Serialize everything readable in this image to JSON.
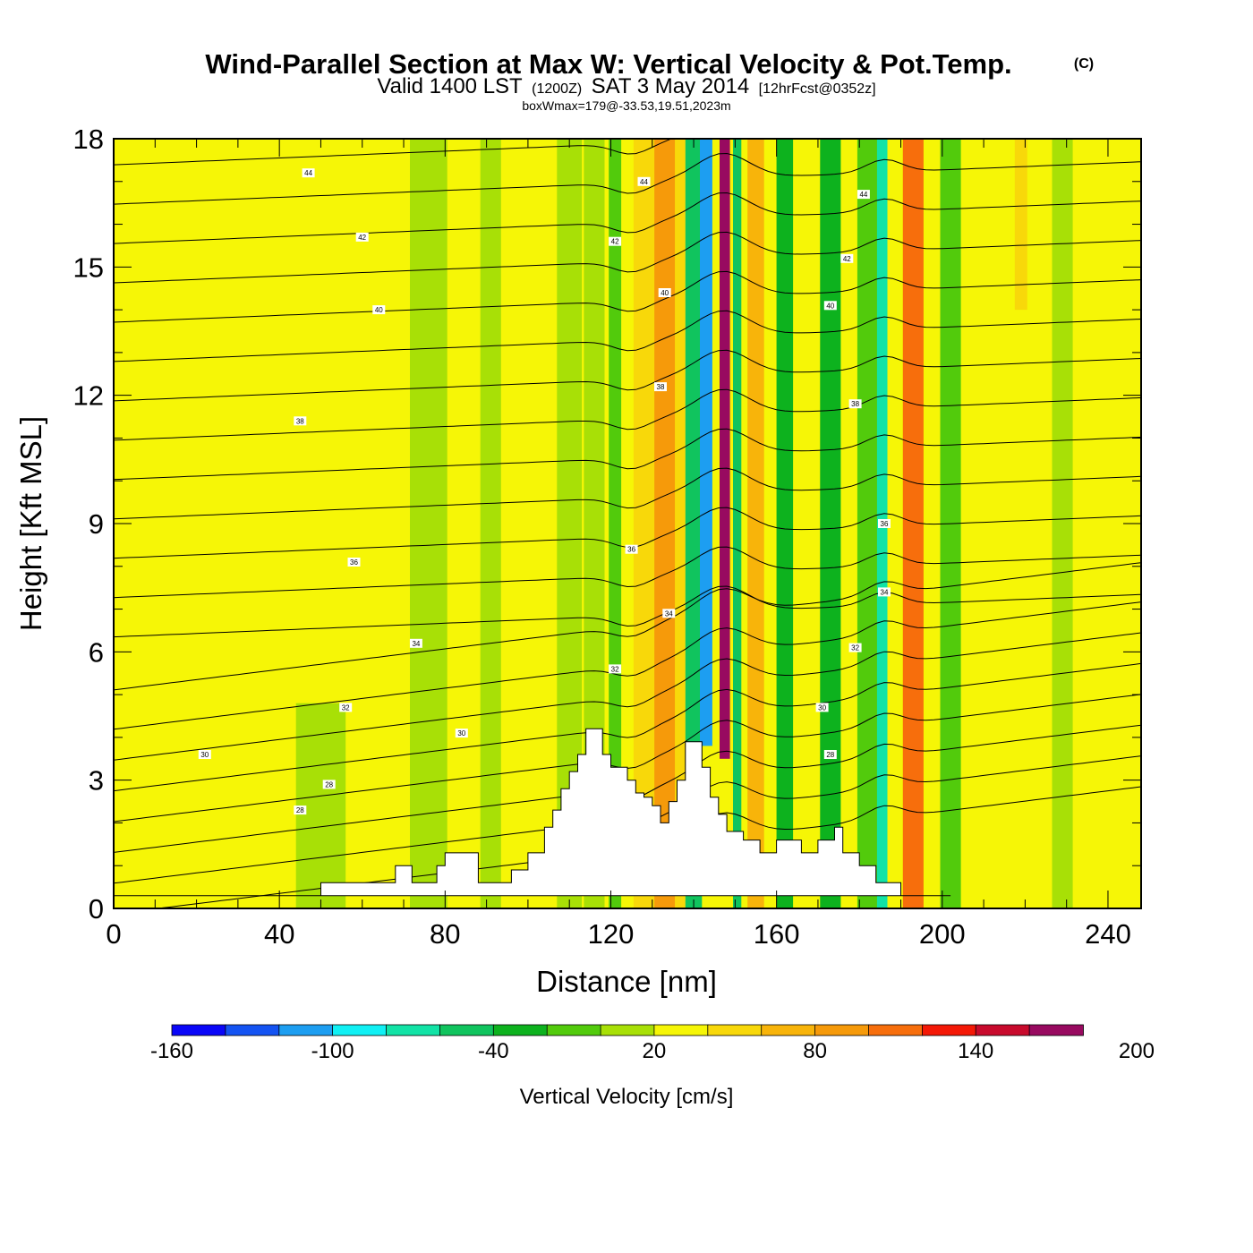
{
  "title": {
    "main": "Wind-Parallel Section at Max W: Vertical Velocity & Pot.Temp.",
    "copyright": "(C)",
    "valid_prefix": "Valid 1400 LST",
    "valid_utc": "(1200Z)",
    "valid_date": "SAT 3 May 2014",
    "forecast": "[12hrFcst@0352z]",
    "box_info": "boxWmax=179@-33.53,19.51,2023m"
  },
  "chart_data": {
    "type": "heatmap",
    "xlabel": "Distance [nm]",
    "ylabel": "Height [Kft MSL]",
    "xlim": [
      0,
      248
    ],
    "ylim": [
      0,
      18
    ],
    "x_ticks": [
      "0",
      "40",
      "80",
      "120",
      "160",
      "200",
      "240"
    ],
    "y_ticks": [
      "0",
      "3",
      "6",
      "9",
      "12",
      "15",
      "18"
    ],
    "colorbar": {
      "title": "Vertical Velocity [cm/s]",
      "labels": [
        "-160",
        "-100",
        "-40",
        "20",
        "80",
        "140",
        "200"
      ],
      "colors": [
        "#0a06f8",
        "#1453f2",
        "#1d9ef1",
        "#10f0f4",
        "#12e3a6",
        "#10c45e",
        "#0db21e",
        "#52cb0c",
        "#a8e006",
        "#f6f606",
        "#f8d80a",
        "#f8b40a",
        "#f69a0a",
        "#f76e0c",
        "#f41806",
        "#c80a2c",
        "#980a60"
      ]
    },
    "background_w": 10,
    "wind_bands": [
      {
        "x_center": 50,
        "width": 12,
        "w": -10,
        "y_top": 4.8
      },
      {
        "x_center": 76,
        "width": 9,
        "w": -8
      },
      {
        "x_center": 91,
        "width": 5,
        "w": -10
      },
      {
        "x_center": 110,
        "width": 6,
        "w": -10
      },
      {
        "x_center": 116,
        "width": 5,
        "w": -10
      },
      {
        "x_center": 121,
        "width": 3,
        "w": -30
      },
      {
        "x_center": 128,
        "width": 5,
        "w": 40
      },
      {
        "x_center": 133,
        "width": 5,
        "w": 70
      },
      {
        "x_center": 137,
        "width": 3,
        "w": 45
      },
      {
        "x_center": 140,
        "width": 4,
        "w": -60
      },
      {
        "x_center": 143,
        "width": 3,
        "w": -130,
        "y_bottom": 3.8
      },
      {
        "x_center": 147.5,
        "width": 2.5,
        "w": 178,
        "y_bottom": 3.5
      },
      {
        "x_center": 150.5,
        "width": 2,
        "w": -70
      },
      {
        "x_center": 155,
        "width": 4,
        "w": 65
      },
      {
        "x_center": 162,
        "width": 4,
        "w": -35
      },
      {
        "x_center": 173,
        "width": 5,
        "w": -40
      },
      {
        "x_center": 182,
        "width": 5,
        "w": -30
      },
      {
        "x_center": 185.5,
        "width": 2.5,
        "w": -90
      },
      {
        "x_center": 193,
        "width": 5,
        "w": 90
      },
      {
        "x_center": 202,
        "width": 5,
        "w": -15
      },
      {
        "x_center": 219,
        "width": 3,
        "w": 35,
        "y_bottom": 14
      },
      {
        "x_center": 229,
        "width": 5,
        "w": -10
      }
    ],
    "terrain": {
      "x": [
        0,
        50,
        50,
        68,
        68,
        72,
        72,
        78,
        78,
        80,
        80,
        88,
        88,
        96,
        96,
        100,
        100,
        104,
        104,
        106,
        106,
        108,
        108,
        110,
        110,
        112,
        112,
        114,
        114,
        118,
        118,
        120,
        120,
        124,
        124,
        126,
        126,
        128,
        128,
        130,
        130,
        132,
        132,
        134,
        134,
        136,
        136,
        138,
        138,
        142,
        142,
        144,
        144,
        146,
        146,
        148,
        148,
        152,
        152,
        156,
        156,
        160,
        160,
        166,
        166,
        170,
        170,
        174,
        174,
        176,
        176,
        180,
        180,
        184,
        184,
        190,
        190,
        202,
        202,
        210,
        210,
        248
      ],
      "y": [
        0.3,
        0.3,
        0.6,
        0.6,
        1.0,
        1.0,
        0.6,
        0.6,
        1.0,
        1.0,
        1.3,
        1.3,
        0.6,
        0.6,
        0.9,
        0.9,
        1.3,
        1.3,
        1.9,
        1.9,
        2.3,
        2.3,
        2.8,
        2.8,
        3.2,
        3.2,
        3.6,
        3.6,
        4.2,
        4.2,
        3.6,
        3.6,
        3.3,
        3.3,
        3.0,
        3.0,
        2.7,
        2.7,
        2.6,
        2.6,
        2.4,
        2.4,
        2.0,
        2.0,
        2.5,
        2.5,
        3.0,
        3.0,
        3.9,
        3.9,
        3.3,
        3.3,
        2.6,
        2.6,
        2.2,
        2.2,
        1.8,
        1.8,
        1.6,
        1.6,
        1.3,
        1.3,
        1.6,
        1.6,
        1.3,
        1.3,
        1.6,
        1.6,
        1.9,
        1.9,
        1.3,
        1.3,
        1.0,
        1.0,
        0.6,
        0.6,
        0.3,
        0.3
      ]
    },
    "theta_contours": {
      "levels_min": 26,
      "levels_max": 48,
      "labels": [
        {
          "text": "44",
          "x": 47,
          "y": 17.2
        },
        {
          "text": "42",
          "x": 60,
          "y": 15.7
        },
        {
          "text": "40",
          "x": 64,
          "y": 14.0
        },
        {
          "text": "38",
          "x": 45,
          "y": 11.4
        },
        {
          "text": "36",
          "x": 58,
          "y": 8.1
        },
        {
          "text": "34",
          "x": 73,
          "y": 6.2
        },
        {
          "text": "32",
          "x": 56,
          "y": 4.7
        },
        {
          "text": "30",
          "x": 22,
          "y": 3.6
        },
        {
          "text": "30",
          "x": 84,
          "y": 4.1
        },
        {
          "text": "28",
          "x": 52,
          "y": 2.9
        },
        {
          "text": "28",
          "x": 45,
          "y": 2.3
        },
        {
          "text": "44",
          "x": 128,
          "y": 17.0
        },
        {
          "text": "42",
          "x": 121,
          "y": 15.6
        },
        {
          "text": "40",
          "x": 133,
          "y": 14.4
        },
        {
          "text": "38",
          "x": 132,
          "y": 12.2
        },
        {
          "text": "36",
          "x": 125,
          "y": 8.4
        },
        {
          "text": "34",
          "x": 134,
          "y": 6.9
        },
        {
          "text": "32",
          "x": 121,
          "y": 5.6
        },
        {
          "text": "44",
          "x": 181,
          "y": 16.7
        },
        {
          "text": "42",
          "x": 177,
          "y": 15.2
        },
        {
          "text": "40",
          "x": 173,
          "y": 14.1
        },
        {
          "text": "38",
          "x": 179,
          "y": 11.8
        },
        {
          "text": "36",
          "x": 186,
          "y": 9.0
        },
        {
          "text": "34",
          "x": 186,
          "y": 7.4
        },
        {
          "text": "32",
          "x": 179,
          "y": 6.1
        },
        {
          "text": "30",
          "x": 171,
          "y": 4.7
        },
        {
          "text": "28",
          "x": 173,
          "y": 3.6
        }
      ]
    }
  }
}
